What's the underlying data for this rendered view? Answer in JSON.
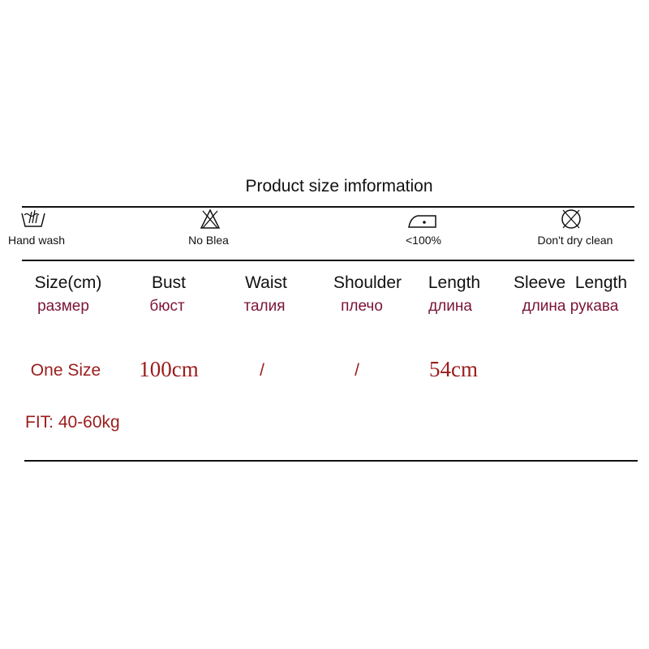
{
  "title": "Product size imformation",
  "care": [
    {
      "icon": "hand-wash-icon",
      "label": "Hand wash"
    },
    {
      "icon": "no-bleach-icon",
      "label": "No Blea"
    },
    {
      "icon": "iron-icon",
      "label": "<100%"
    },
    {
      "icon": "no-dry-clean-icon",
      "label": "Don't dry clean"
    }
  ],
  "columns": [
    {
      "en": "Size(cm)",
      "ru": "размер"
    },
    {
      "en": "Bust",
      "ru": "бюст"
    },
    {
      "en": "Waist",
      "ru": "талия"
    },
    {
      "en": "Shoulder",
      "ru": "плечо"
    },
    {
      "en": "Length",
      "ru": "длина"
    },
    {
      "en": "Sleeve  Length",
      "ru": "длина рукава"
    }
  ],
  "row": {
    "size": "One Size",
    "bust": "100cm",
    "waist": "/",
    "shoulder": "/",
    "length": "54cm"
  },
  "fit": "FIT: 40-60kg",
  "colors": {
    "russian": "#7a1436",
    "values": "#9b1c1c",
    "text": "#111111"
  }
}
